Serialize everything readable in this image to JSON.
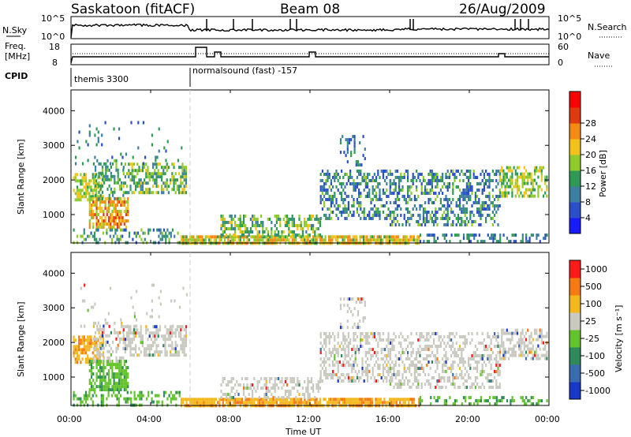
{
  "header": {
    "station": "Saskatoon (fitACF)",
    "beam": "Beam 08",
    "date": "26/Aug/2009"
  },
  "noise_panel": {
    "left_label": "N.Sky",
    "right_label": "N.Search",
    "left_ticks": [
      "10^5",
      "10^0"
    ],
    "right_ticks": [
      "10^5",
      "10^0"
    ]
  },
  "freq_panel": {
    "left_label_1": "Freq.",
    "left_label_2": "[MHz]",
    "right_label": "Nave",
    "left_ticks": [
      "18",
      "8"
    ],
    "right_ticks": [
      "60",
      "0"
    ]
  },
  "cpid_panel": {
    "label": "CPID",
    "modes": [
      {
        "name": "themis 3300",
        "start_hour": 0,
        "end_hour": 6
      },
      {
        "name": "normalsound (fast) -157",
        "start_hour": 6,
        "end_hour": 24
      }
    ]
  },
  "chart_data": [
    {
      "type": "heatmap",
      "quantity": "Power",
      "ylabel": "Slant Range [km]",
      "ylim": [
        180,
        4600
      ],
      "yticks": [
        1000,
        2000,
        3000,
        4000
      ],
      "xlim": [
        0,
        24
      ],
      "colorbar": {
        "label": "Power [dB]",
        "ticks": [
          "4",
          "8",
          "12",
          "16",
          "20",
          "24",
          "28"
        ],
        "colors": [
          "#1a1aff",
          "#2a4fc8",
          "#3d7fa0",
          "#2f9a55",
          "#8ecb2a",
          "#f3c21a",
          "#f48a12",
          "#e03a10",
          "#ff0000"
        ]
      }
    },
    {
      "type": "heatmap",
      "quantity": "Velocity",
      "ylabel": "Slant Range [km]",
      "ylim": [
        180,
        4600
      ],
      "yticks": [
        1000,
        2000,
        3000,
        4000
      ],
      "xlim": [
        0,
        24
      ],
      "colorbar": {
        "label": "Velocity [m s⁻¹]",
        "ticks": [
          "1000",
          "500",
          "100",
          "25",
          "-25",
          "-100",
          "-500",
          "-1000"
        ],
        "colors": [
          "#1838c8",
          "#3a6ab0",
          "#2f8a5a",
          "#62c32a",
          "#c9c9c0",
          "#f5b81c",
          "#f57a14",
          "#ff1a1a"
        ]
      }
    }
  ],
  "x_axis": {
    "label": "Time UT",
    "ticks": [
      "00:00",
      "04:00",
      "08:00",
      "12:00",
      "16:00",
      "20:00",
      "00:00"
    ]
  }
}
